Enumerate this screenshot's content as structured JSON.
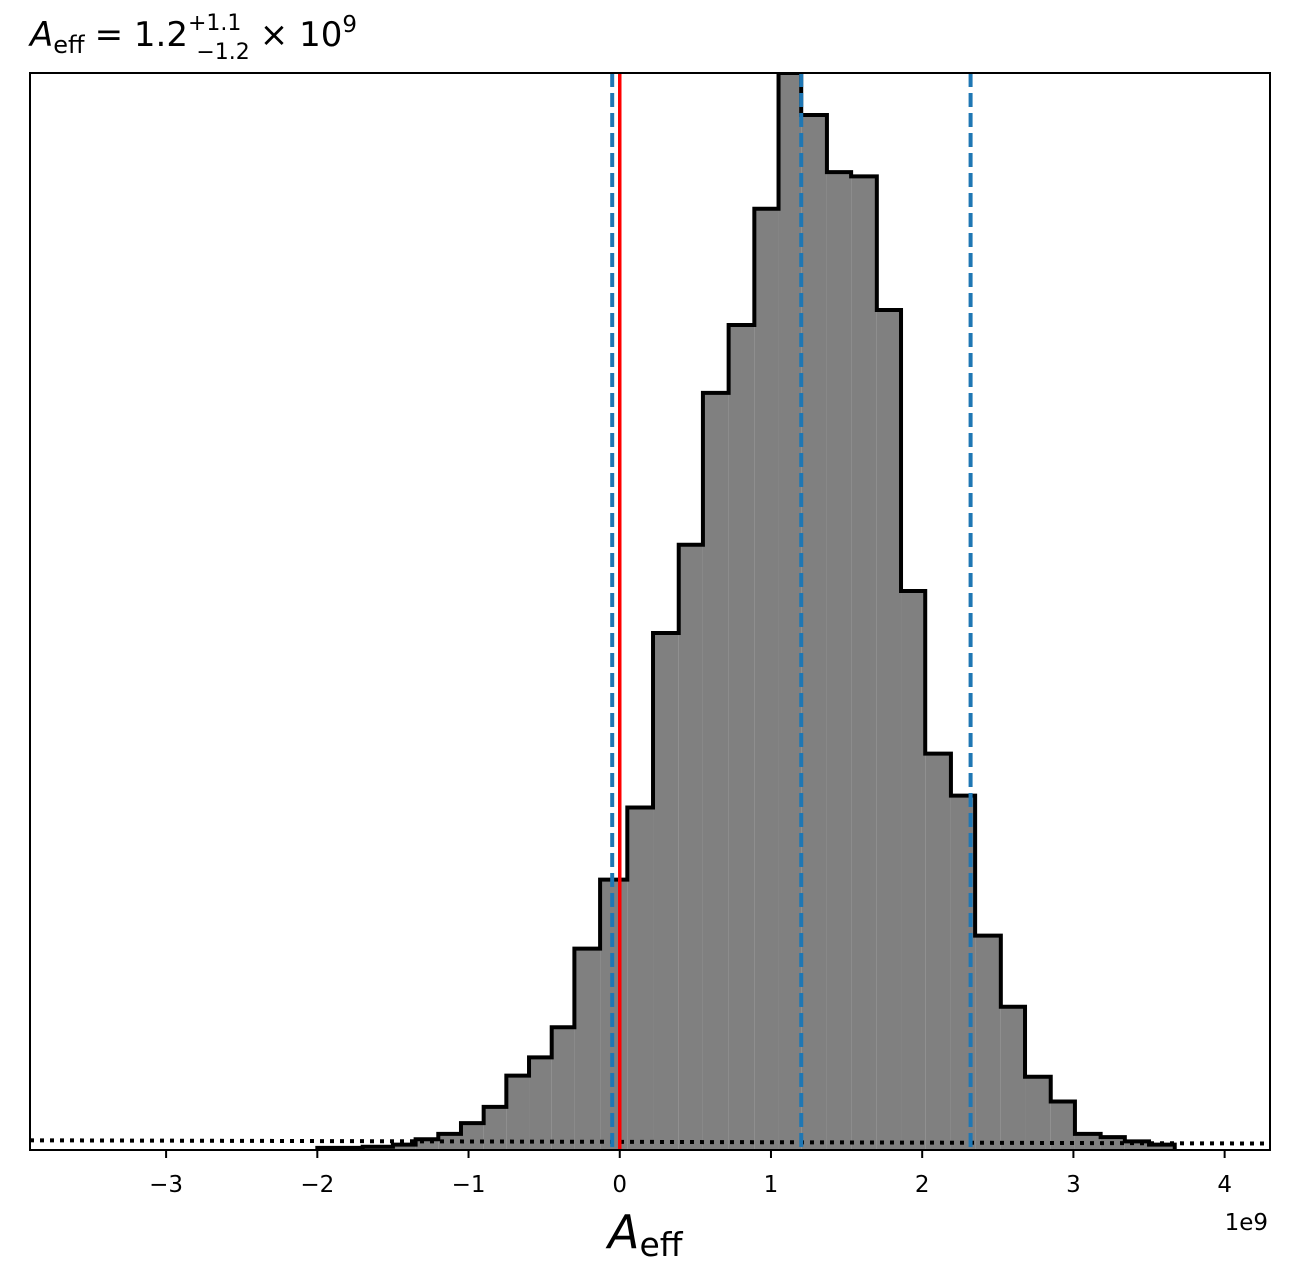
{
  "chart_data": {
    "type": "bar",
    "title": {
      "symbol": "A",
      "symbol_sub": "eff",
      "equals": "= 1.2",
      "sup": "+1.1",
      "sub": "−1.2",
      "times": "× 10",
      "exponent": "9"
    },
    "xlabel": {
      "symbol": "A",
      "sub": "eff"
    },
    "x_offset_label": "1e9",
    "xlim": [
      -3.9,
      4.3
    ],
    "ylim": [
      0,
      1
    ],
    "x_ticks": [
      -3,
      -2,
      -1,
      0,
      1,
      2,
      3,
      4
    ],
    "x_tick_labels": [
      "−3",
      "−2",
      "−1",
      "0",
      "1",
      "2",
      "3",
      "4"
    ],
    "y_ticks_visible": false,
    "grid": false,
    "histogram": {
      "bin_edges": [
        -2.0,
        -1.7,
        -1.5,
        -1.35,
        -1.2,
        -1.05,
        -0.9,
        -0.75,
        -0.6,
        -0.45,
        -0.3,
        -0.13,
        0.05,
        0.22,
        0.39,
        0.55,
        0.72,
        0.89,
        1.05,
        1.2,
        1.37,
        1.53,
        1.7,
        1.86,
        2.02,
        2.19,
        2.35,
        2.52,
        2.68,
        2.85,
        3.01,
        3.18,
        3.34,
        3.5,
        3.67
      ],
      "heights": [
        0.002,
        0.003,
        0.005,
        0.01,
        0.015,
        0.025,
        0.04,
        0.069,
        0.086,
        0.114,
        0.187,
        0.251,
        0.318,
        0.48,
        0.562,
        0.703,
        0.766,
        0.874,
        1.0,
        0.961,
        0.908,
        0.904,
        0.78,
        0.519,
        0.368,
        0.329,
        0.199,
        0.133,
        0.068,
        0.045,
        0.015,
        0.012,
        0.008,
        0.005
      ],
      "fill_color": "#808080",
      "edge_color": "#000000"
    },
    "vertical_lines": [
      {
        "x": -0.05,
        "style": "dashed",
        "color": "#1f77b4"
      },
      {
        "x": 1.2,
        "style": "dashed",
        "color": "#1f77b4"
      },
      {
        "x": 2.32,
        "style": "dashed",
        "color": "#1f77b4"
      },
      {
        "x": 0.0,
        "style": "solid",
        "color": "#ff0000"
      }
    ],
    "prior_line": {
      "style": "dotted",
      "color": "#000000",
      "y_left": 0.009,
      "y_right": 0.006
    }
  }
}
